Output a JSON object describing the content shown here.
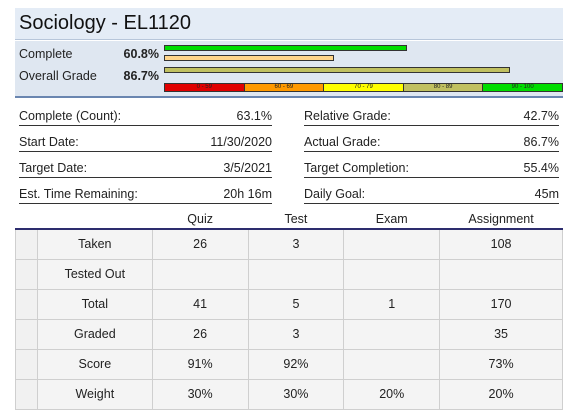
{
  "course": {
    "title": "Sociology - EL1120"
  },
  "progress": {
    "complete_label": "Complete",
    "complete_value": "60.8%",
    "overall_label": "Overall Grade",
    "overall_value": "86.7%",
    "complete_fraction": 0.608,
    "overall_fraction": 0.867
  },
  "grade_scale": [
    "0 - 59",
    "60 - 69",
    "70 - 79",
    "80 - 89",
    "90 - 100"
  ],
  "grade_scale_colors": [
    "#e00000",
    "#ff9900",
    "#ffff00",
    "#c0c060",
    "#00dd00"
  ],
  "stats": {
    "complete_count_label": "Complete (Count):",
    "complete_count_value": "63.1%",
    "start_date_label": "Start Date:",
    "start_date_value": "11/30/2020",
    "target_date_label": "Target Date:",
    "target_date_value": "3/5/2021",
    "time_remaining_label": "Est. Time Remaining:",
    "time_remaining_value": "20h 16m",
    "relative_grade_label": "Relative Grade:",
    "relative_grade_value": "42.7%",
    "actual_grade_label": "Actual Grade:",
    "actual_grade_value": "86.7%",
    "target_completion_label": "Target Completion:",
    "target_completion_value": "55.4%",
    "daily_goal_label": "Daily Goal:",
    "daily_goal_value": "45m"
  },
  "table": {
    "headers": [
      "Quiz",
      "Test",
      "Exam",
      "Assignment"
    ],
    "rows": [
      {
        "label": "Taken",
        "cells": [
          "26",
          "3",
          "",
          "108"
        ]
      },
      {
        "label": "Tested Out",
        "cells": [
          "",
          "",
          "",
          ""
        ]
      },
      {
        "label": "Total",
        "cells": [
          "41",
          "5",
          "1",
          "170"
        ]
      },
      {
        "label": "Graded",
        "cells": [
          "26",
          "3",
          "",
          "35"
        ]
      },
      {
        "label": "Score",
        "cells": [
          "91%",
          "92%",
          "",
          "73%"
        ]
      },
      {
        "label": "Weight",
        "cells": [
          "30%",
          "30%",
          "20%",
          "20%"
        ]
      }
    ]
  }
}
